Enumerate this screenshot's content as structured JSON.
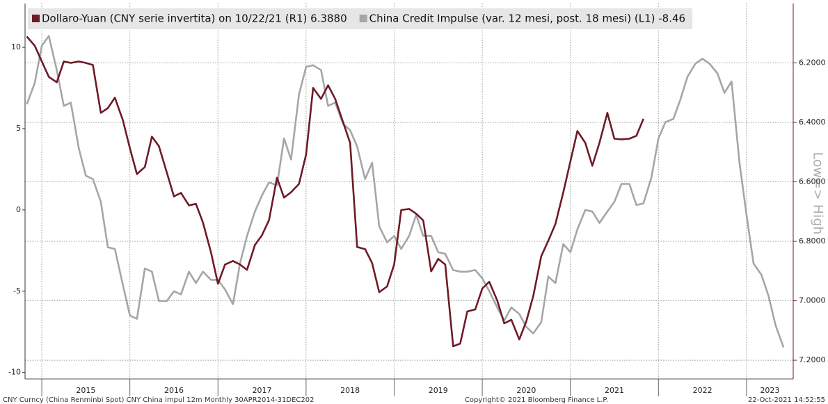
{
  "chart_data": {
    "type": "line",
    "legend": "top-left",
    "grid": true,
    "y2_inverted": true,
    "y2_label": "Low=> High",
    "footer_left": "CNY Curncy (China Renminbi Spot) CNY China impul 12m  Monthly 30APR2014-31DEC202",
    "footer_center": "Copyright© 2021 Bloomberg Finance L.P.",
    "footer_right": "22-Oct-2021 14:52:55",
    "xlim": [
      2014.81,
      2023.53
    ],
    "xticks": [
      2015,
      2016,
      2017,
      2018,
      2019,
      2020,
      2021,
      2022,
      2023
    ],
    "ylim": [
      -10.4,
      12.7
    ],
    "yticks": [
      10,
      5,
      0,
      -5,
      -10
    ],
    "y2lim": [
      6.0,
      7.263
    ],
    "y2ticks": [
      {
        "value": 6.2,
        "label": "6.2000"
      },
      {
        "value": 6.4,
        "label": "6.4000"
      },
      {
        "value": 6.6,
        "label": "6.6000"
      },
      {
        "value": 6.8,
        "label": "6.8000"
      },
      {
        "value": 7.0,
        "label": "7.0000"
      },
      {
        "value": 7.2,
        "label": "7.2000"
      }
    ],
    "x": [
      2014.83,
      2014.92,
      2015.0,
      2015.08,
      2015.17,
      2015.25,
      2015.33,
      2015.42,
      2015.5,
      2015.58,
      2015.67,
      2015.75,
      2015.83,
      2015.92,
      2016.0,
      2016.08,
      2016.17,
      2016.25,
      2016.33,
      2016.42,
      2016.5,
      2016.58,
      2016.67,
      2016.75,
      2016.83,
      2016.92,
      2017.0,
      2017.08,
      2017.17,
      2017.25,
      2017.33,
      2017.42,
      2017.5,
      2017.58,
      2017.67,
      2017.75,
      2017.83,
      2017.92,
      2018.0,
      2018.08,
      2018.17,
      2018.25,
      2018.33,
      2018.42,
      2018.5,
      2018.58,
      2018.67,
      2018.75,
      2018.83,
      2018.92,
      2019.0,
      2019.08,
      2019.17,
      2019.25,
      2019.33,
      2019.42,
      2019.5,
      2019.58,
      2019.67,
      2019.75,
      2019.83,
      2019.92,
      2020.0,
      2020.08,
      2020.17,
      2020.25,
      2020.33,
      2020.42,
      2020.5,
      2020.58,
      2020.67,
      2020.75,
      2020.83,
      2020.92,
      2021.0,
      2021.08,
      2021.17,
      2021.25,
      2021.33,
      2021.42,
      2021.5,
      2021.58,
      2021.67,
      2021.75,
      2021.83,
      2021.92,
      2022.0,
      2022.08,
      2022.17,
      2022.25,
      2022.33,
      2022.42,
      2022.5,
      2022.58,
      2022.67,
      2022.75,
      2022.83,
      2022.92,
      2023.0,
      2023.08,
      2023.17,
      2023.25,
      2023.33,
      2023.42
    ],
    "series": [
      {
        "name": "Dollaro-Yuan (CNY serie invertita) on 10/22/21 (R1) 6.3880",
        "color": "#6e1a27",
        "axis": "y2",
        "values": [
          6.111,
          6.142,
          6.195,
          6.247,
          6.265,
          6.195,
          6.2,
          6.195,
          6.2,
          6.207,
          6.368,
          6.352,
          6.317,
          6.392,
          6.487,
          6.574,
          6.55,
          6.448,
          6.48,
          6.569,
          6.649,
          6.637,
          6.679,
          6.674,
          6.737,
          6.836,
          6.943,
          6.878,
          6.866,
          6.878,
          6.896,
          6.812,
          6.779,
          6.728,
          6.586,
          6.653,
          6.635,
          6.607,
          6.508,
          6.284,
          6.321,
          6.275,
          6.321,
          6.399,
          6.469,
          6.819,
          6.826,
          6.873,
          6.971,
          6.952,
          6.878,
          6.695,
          6.691,
          6.707,
          6.73,
          6.901,
          6.859,
          6.878,
          7.153,
          7.144,
          7.036,
          7.029,
          6.959,
          6.936,
          6.999,
          7.076,
          7.064,
          7.13,
          7.069,
          6.983,
          6.85,
          6.798,
          6.742,
          6.635,
          6.532,
          6.429,
          6.469,
          6.546,
          6.469,
          6.368,
          6.455,
          6.457,
          6.455,
          6.445,
          6.388,
          null,
          null,
          null,
          null,
          null,
          null,
          null,
          null,
          null,
          null,
          null,
          null,
          null,
          null,
          null,
          null,
          null,
          null,
          null
        ]
      },
      {
        "name": "China Credit Impulse (var. 12 mesi, post. 18 mesi) (L1) -8.46",
        "color": "#a6a6a6",
        "axis": "y",
        "values": [
          6.5,
          7.8,
          10.1,
          10.7,
          8.6,
          6.4,
          6.6,
          3.8,
          2.1,
          1.9,
          0.5,
          -2.3,
          -2.4,
          -4.6,
          -6.5,
          -6.7,
          -3.6,
          -3.8,
          -5.6,
          -5.6,
          -5.0,
          -5.2,
          -3.8,
          -4.5,
          -3.8,
          -4.3,
          -4.3,
          -4.9,
          -5.8,
          -3.3,
          -1.6,
          -0.1,
          0.9,
          1.7,
          1.5,
          4.4,
          3.1,
          7.1,
          8.8,
          8.9,
          8.6,
          6.4,
          6.6,
          5.3,
          4.9,
          3.9,
          1.9,
          2.9,
          -1.0,
          -2.0,
          -1.6,
          -2.4,
          -1.6,
          -0.3,
          -1.6,
          -1.6,
          -2.6,
          -2.7,
          -3.7,
          -3.8,
          -3.8,
          -3.7,
          -4.2,
          -5.0,
          -6.0,
          -6.8,
          -6.0,
          -6.4,
          -7.2,
          -7.6,
          -6.9,
          -4.1,
          -4.5,
          -2.1,
          -2.6,
          -1.2,
          0.0,
          -0.1,
          -0.8,
          -0.1,
          0.5,
          1.6,
          1.6,
          0.3,
          0.4,
          2.0,
          4.4,
          5.4,
          5.6,
          6.8,
          8.2,
          9.0,
          9.3,
          9.0,
          8.4,
          7.2,
          7.9,
          2.9,
          -0.3,
          -3.3,
          -4.0,
          -5.3,
          -7.1,
          -8.46
        ]
      }
    ]
  }
}
